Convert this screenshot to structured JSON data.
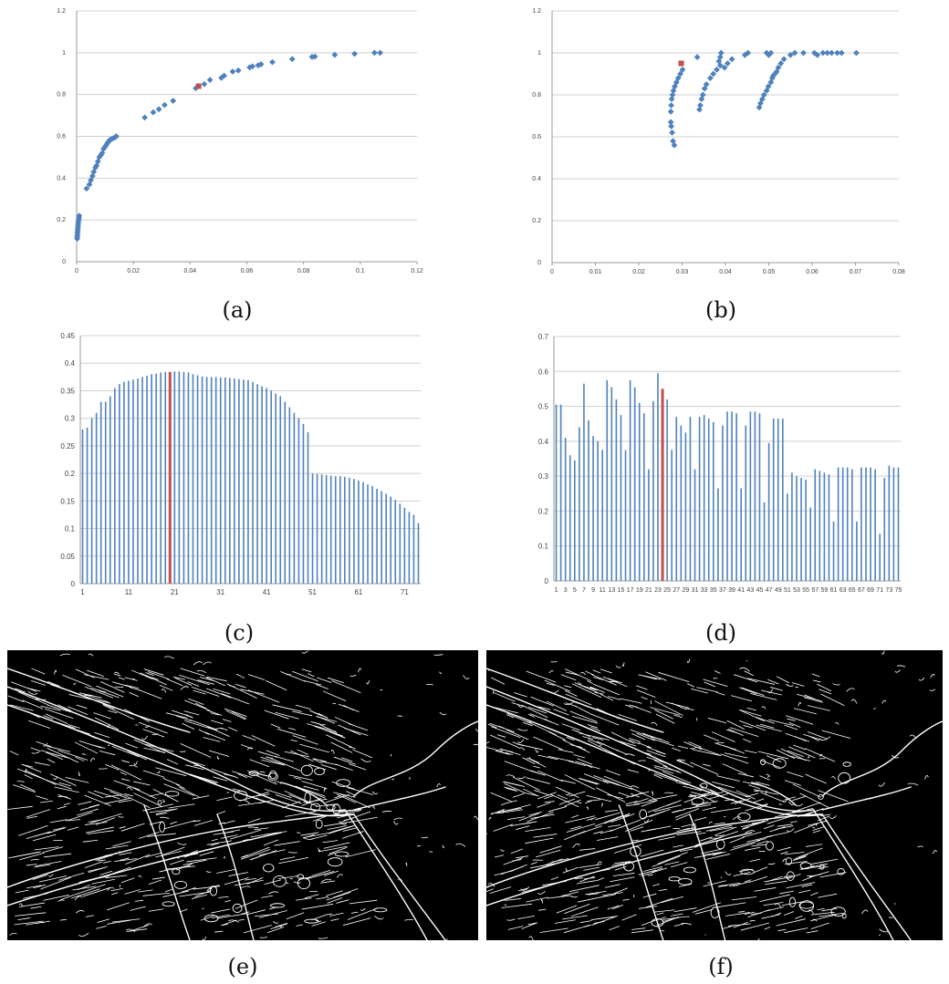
{
  "charts": {
    "a": {
      "caption": "(a)",
      "chart_data": {
        "type": "scatter",
        "xlim": [
          0,
          0.12
        ],
        "ylim": [
          0,
          1.2
        ],
        "xticks": [
          "0",
          "0.02",
          "0.04",
          "0.06",
          "0.08",
          "0.1",
          "0.12"
        ],
        "yticks": [
          "0",
          "0.2",
          "0.4",
          "0.6",
          "0.8",
          "1",
          "1.2"
        ],
        "grid": true,
        "series": [
          {
            "color": "#4f81bd",
            "points": [
              [
                0.0002,
                0.11
              ],
              [
                0.0002,
                0.12
              ],
              [
                0.0003,
                0.13
              ],
              [
                0.0003,
                0.14
              ],
              [
                0.0004,
                0.15
              ],
              [
                0.0004,
                0.16
              ],
              [
                0.0005,
                0.17
              ],
              [
                0.0005,
                0.18
              ],
              [
                0.0006,
                0.19
              ],
              [
                0.0007,
                0.2
              ],
              [
                0.0008,
                0.21
              ],
              [
                0.0009,
                0.22
              ],
              [
                0.0035,
                0.35
              ],
              [
                0.0045,
                0.37
              ],
              [
                0.005,
                0.39
              ],
              [
                0.0056,
                0.41
              ],
              [
                0.006,
                0.43
              ],
              [
                0.0066,
                0.45
              ],
              [
                0.007,
                0.46
              ],
              [
                0.0075,
                0.48
              ],
              [
                0.008,
                0.5
              ],
              [
                0.0085,
                0.51
              ],
              [
                0.009,
                0.52
              ],
              [
                0.0095,
                0.54
              ],
              [
                0.01,
                0.55
              ],
              [
                0.0105,
                0.56
              ],
              [
                0.011,
                0.57
              ],
              [
                0.0115,
                0.58
              ],
              [
                0.012,
                0.585
              ],
              [
                0.0128,
                0.59
              ],
              [
                0.0135,
                0.595
              ],
              [
                0.014,
                0.6
              ],
              [
                0.024,
                0.69
              ],
              [
                0.027,
                0.715
              ],
              [
                0.029,
                0.73
              ],
              [
                0.031,
                0.75
              ],
              [
                0.034,
                0.77
              ],
              [
                0.042,
                0.83
              ],
              [
                0.045,
                0.85
              ],
              [
                0.047,
                0.87
              ],
              [
                0.051,
                0.88
              ],
              [
                0.052,
                0.89
              ],
              [
                0.055,
                0.91
              ],
              [
                0.057,
                0.915
              ],
              [
                0.061,
                0.93
              ],
              [
                0.062,
                0.935
              ],
              [
                0.064,
                0.94
              ],
              [
                0.065,
                0.945
              ],
              [
                0.069,
                0.955
              ],
              [
                0.076,
                0.97
              ],
              [
                0.083,
                0.98
              ],
              [
                0.084,
                0.982
              ],
              [
                0.091,
                0.99
              ],
              [
                0.098,
                0.995
              ],
              [
                0.105,
                1.0
              ],
              [
                0.107,
                1.0
              ]
            ]
          },
          {
            "color": "#c0504d",
            "points": [
              [
                0.043,
                0.84
              ]
            ]
          }
        ]
      }
    },
    "b": {
      "caption": "(b)",
      "chart_data": {
        "type": "scatter",
        "xlim": [
          0,
          0.08
        ],
        "ylim": [
          0,
          1.2
        ],
        "xticks": [
          "0",
          "0.01",
          "0.02",
          "0.03",
          "0.04",
          "0.05",
          "0.06",
          "0.07",
          "0.08"
        ],
        "yticks": [
          "0",
          "0.2",
          "0.4",
          "0.6",
          "0.8",
          "1",
          "1.2"
        ],
        "grid": true,
        "series": [
          {
            "color": "#4f81bd",
            "points": [
              [
                0.0282,
                0.56
              ],
              [
                0.0279,
                0.58
              ],
              [
                0.0277,
                0.62
              ],
              [
                0.0275,
                0.65
              ],
              [
                0.0274,
                0.67
              ],
              [
                0.0274,
                0.72
              ],
              [
                0.0275,
                0.75
              ],
              [
                0.0276,
                0.78
              ],
              [
                0.0278,
                0.8
              ],
              [
                0.028,
                0.82
              ],
              [
                0.0283,
                0.84
              ],
              [
                0.0287,
                0.86
              ],
              [
                0.0291,
                0.88
              ],
              [
                0.0296,
                0.9
              ],
              [
                0.0301,
                0.92
              ],
              [
                0.034,
                0.73
              ],
              [
                0.0342,
                0.75
              ],
              [
                0.0345,
                0.78
              ],
              [
                0.0348,
                0.8
              ],
              [
                0.0352,
                0.83
              ],
              [
                0.0356,
                0.85
              ],
              [
                0.0365,
                0.88
              ],
              [
                0.0372,
                0.9
              ],
              [
                0.038,
                0.92
              ],
              [
                0.0388,
                0.94
              ],
              [
                0.0385,
                0.96
              ],
              [
                0.0388,
                0.98
              ],
              [
                0.039,
                1.0
              ],
              [
                0.0398,
                0.93
              ],
              [
                0.0405,
                0.95
              ],
              [
                0.0415,
                0.97
              ],
              [
                0.0445,
                0.99
              ],
              [
                0.0452,
                1.0
              ],
              [
                0.0478,
                0.74
              ],
              [
                0.0481,
                0.76
              ],
              [
                0.0485,
                0.78
              ],
              [
                0.0489,
                0.8
              ],
              [
                0.0495,
                0.82
              ],
              [
                0.0499,
                0.84
              ],
              [
                0.0505,
                0.86
              ],
              [
                0.0508,
                0.88
              ],
              [
                0.051,
                0.89
              ],
              [
                0.0514,
                0.9
              ],
              [
                0.0518,
                0.91
              ],
              [
                0.0522,
                0.93
              ],
              [
                0.0528,
                0.95
              ],
              [
                0.0535,
                0.97
              ],
              [
                0.055,
                0.99
              ],
              [
                0.0495,
                1.0
              ],
              [
                0.05,
                0.99
              ],
              [
                0.0505,
                1.0
              ],
              [
                0.056,
                1.0
              ],
              [
                0.058,
                1.0
              ],
              [
                0.0605,
                1.0
              ],
              [
                0.0612,
                0.99
              ],
              [
                0.0625,
                1.0
              ],
              [
                0.0635,
                1.0
              ],
              [
                0.0645,
                1.0
              ],
              [
                0.0658,
                1.0
              ],
              [
                0.0668,
                1.0
              ],
              [
                0.0702,
                1.0
              ],
              [
                0.0335,
                0.98
              ]
            ]
          },
          {
            "color": "#c0504d",
            "points": [
              [
                0.0298,
                0.95
              ]
            ]
          }
        ]
      }
    },
    "c": {
      "caption": "(c)",
      "chart_data": {
        "type": "bar",
        "ylim": [
          0,
          0.45
        ],
        "yticks": [
          "0",
          "0.05",
          "0.1",
          "0.15",
          "0.2",
          "0.25",
          "0.3",
          "0.35",
          "0.4",
          "0.45"
        ],
        "xtick_labels": [
          "1",
          "11",
          "21",
          "31",
          "41",
          "51",
          "61",
          "71"
        ],
        "highlight_index": 19,
        "bar_color": "#4f81bd",
        "highlight_color": "#c0504d",
        "grid": true,
        "values": [
          0.28,
          0.283,
          0.3,
          0.31,
          0.33,
          0.33,
          0.34,
          0.355,
          0.362,
          0.366,
          0.368,
          0.37,
          0.372,
          0.375,
          0.377,
          0.38,
          0.381,
          0.383,
          0.384,
          0.384,
          0.385,
          0.385,
          0.384,
          0.383,
          0.38,
          0.378,
          0.376,
          0.375,
          0.375,
          0.375,
          0.374,
          0.374,
          0.373,
          0.372,
          0.371,
          0.37,
          0.369,
          0.366,
          0.362,
          0.358,
          0.355,
          0.35,
          0.345,
          0.34,
          0.33,
          0.32,
          0.31,
          0.3,
          0.29,
          0.275,
          0.2,
          0.199,
          0.198,
          0.197,
          0.196,
          0.195,
          0.195,
          0.194,
          0.192,
          0.19,
          0.187,
          0.184,
          0.18,
          0.177,
          0.172,
          0.168,
          0.163,
          0.158,
          0.152,
          0.145,
          0.138,
          0.13,
          0.125,
          0.11
        ]
      }
    },
    "d": {
      "caption": "(d)",
      "chart_data": {
        "type": "bar",
        "ylim": [
          0,
          0.7
        ],
        "yticks": [
          "0",
          "0.1",
          "0.2",
          "0.3",
          "0.4",
          "0.5",
          "0.6",
          "0.7"
        ],
        "xtick_labels": [
          "1",
          "3",
          "5",
          "7",
          "9",
          "11",
          "13",
          "15",
          "17",
          "19",
          "21",
          "23",
          "25",
          "27",
          "29",
          "31",
          "33",
          "35",
          "37",
          "39",
          "41",
          "43",
          "45",
          "47",
          "49",
          "51",
          "53",
          "55",
          "57",
          "59",
          "61",
          "63",
          "65",
          "67",
          "69",
          "71",
          "73",
          "75"
        ],
        "highlight_index": 23,
        "bar_color": "#4f81bd",
        "highlight_color": "#c0504d",
        "grid": true,
        "values": [
          0.505,
          0.505,
          0.41,
          0.36,
          0.345,
          0.44,
          0.565,
          0.46,
          0.415,
          0.4,
          0.375,
          0.575,
          0.555,
          0.52,
          0.475,
          0.375,
          0.575,
          0.555,
          0.51,
          0.48,
          0.32,
          0.515,
          0.595,
          0.55,
          0.52,
          0.375,
          0.47,
          0.445,
          0.425,
          0.47,
          0.32,
          0.47,
          0.475,
          0.465,
          0.455,
          0.265,
          0.445,
          0.485,
          0.485,
          0.48,
          0.265,
          0.445,
          0.485,
          0.485,
          0.48,
          0.225,
          0.395,
          0.465,
          0.465,
          0.465,
          0.25,
          0.31,
          0.3,
          0.295,
          0.29,
          0.21,
          0.32,
          0.315,
          0.31,
          0.305,
          0.17,
          0.325,
          0.325,
          0.325,
          0.32,
          0.17,
          0.325,
          0.325,
          0.325,
          0.32,
          0.135,
          0.295,
          0.33,
          0.325,
          0.325
        ]
      }
    },
    "e": {
      "caption": "(e)"
    },
    "f": {
      "caption": "(f)"
    }
  }
}
